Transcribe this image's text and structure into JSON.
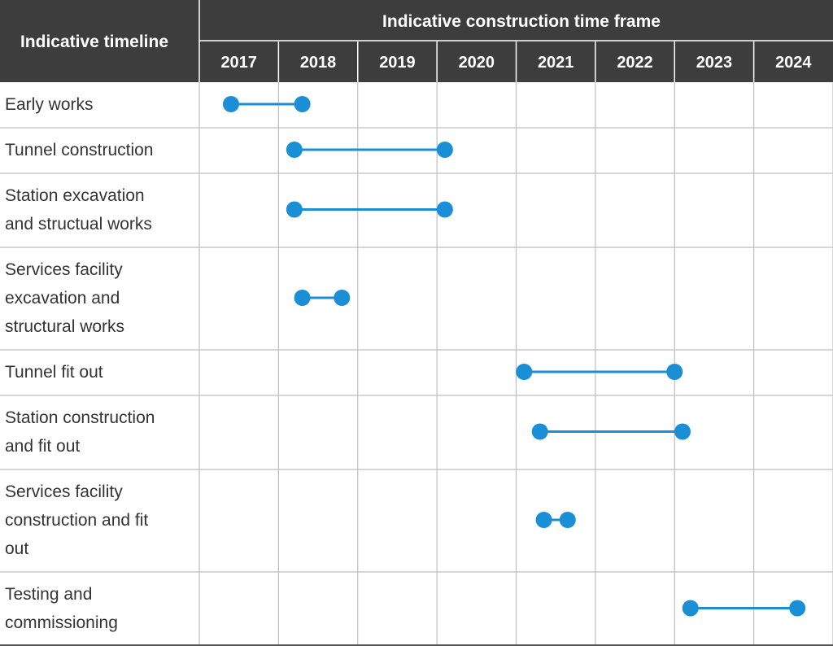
{
  "table_header": {
    "left_title": "Indicative timeline",
    "right_title": "Indicative construction time frame"
  },
  "colors": {
    "header_bg": "#3d3d3d",
    "header_text": "#ffffff",
    "grid": "#bfbfbf",
    "bar": "#1a8fd6",
    "row_text": "#333333"
  },
  "chart_data": {
    "type": "gantt",
    "years": [
      "2017",
      "2018",
      "2019",
      "2020",
      "2021",
      "2022",
      "2023",
      "2024"
    ],
    "tasks": [
      {
        "lines": [
          "Early works"
        ],
        "start": 2017.4,
        "end": 2018.3
      },
      {
        "lines": [
          "Tunnel construction"
        ],
        "start": 2018.2,
        "end": 2020.1
      },
      {
        "lines": [
          "Station excavation",
          "and structual works"
        ],
        "start": 2018.2,
        "end": 2020.1
      },
      {
        "lines": [
          "Services facility",
          "excavation and",
          "structural works"
        ],
        "start": 2018.3,
        "end": 2018.8
      },
      {
        "lines": [
          "Tunnel fit out"
        ],
        "start": 2021.1,
        "end": 2023.0
      },
      {
        "lines": [
          "Station construction",
          "and fit out"
        ],
        "start": 2021.3,
        "end": 2023.1
      },
      {
        "lines": [
          "Services facility",
          "construction and fit",
          "out"
        ],
        "start": 2021.35,
        "end": 2021.65
      },
      {
        "lines": [
          "Testing and",
          "commissioning"
        ],
        "start": 2023.2,
        "end": 2024.55
      }
    ]
  }
}
